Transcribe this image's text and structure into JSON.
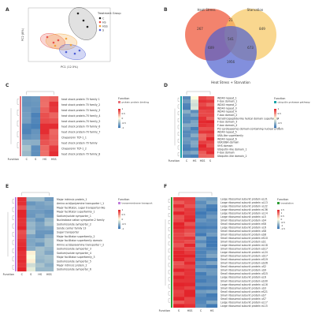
{
  "panels": {
    "A": {
      "label": "A",
      "xlabel": "PC1 (12.5%)",
      "ylabel": "PC2 (8%)",
      "legend_title": "Treatment Group",
      "groups": [
        {
          "name": "C",
          "color": "#222222"
        },
        {
          "name": "HS",
          "color": "#e8524a"
        },
        {
          "name": "HSS",
          "color": "#f2a33a"
        },
        {
          "name": "S",
          "color": "#4f5fd6"
        }
      ]
    },
    "B": {
      "label": "B",
      "sets": [
        "Heat Stress",
        "Starvation",
        "Heat Stress + Starvation"
      ],
      "counts": {
        "a_only": "267",
        "ab": "21",
        "b_only": "849",
        "abc": "541",
        "ac": "609",
        "bc": "673",
        "c_only": "1956"
      }
    },
    "C": {
      "label": "C",
      "legend_title": "Function",
      "legend_item": "protein protein binding",
      "columns": [
        "C",
        "S",
        "HS",
        "HSS"
      ],
      "row_label": "Function",
      "rows": [
        "heat shock protein 70 family 1",
        "heat shock protein 70 family_2",
        "heat shock protein 70 family_3",
        "heat shock protein-70 family_4",
        "heat shock protein-70 family_5",
        "heat shock protein 70 family_6",
        "heat shock protein-70 family_7",
        "Chaperonin TCP-1_1",
        "heat shock protein 70 family",
        "Chaperonin TCP-1_2",
        "heat shock protein 70 family_8"
      ],
      "scale": [
        "1",
        "0.5",
        "0",
        "-0.5",
        "-1"
      ]
    },
    "D": {
      "label": "D",
      "legend_title": "Function",
      "legend_item": "ubiquitin protease pathway",
      "columns": [
        "C",
        "HS",
        "HSS",
        "S"
      ],
      "row_label": "Function",
      "rows": [
        "WD40 repeat_1",
        "F-box domain_1",
        "WD40 repeat_2",
        "WD40 repeat_3",
        "WD40 repeat_4",
        "F-box domain_2",
        "Tetratricopeptide-like helical domain superfamily",
        "F-box domain_3",
        "F-box domain_4",
        "PCI (proteasome) domain-containing nuclear protein",
        "WD40 repeat_5",
        "UBA-like superfamily",
        "WD40 repeat_6",
        "UBX/UBA domain",
        "VHS domain",
        "Ubiquitin-like domain_1",
        "F-box domain",
        "Ubiquitin-like domain_2"
      ],
      "scale": [
        "1",
        "0.5",
        "0",
        "-0.5",
        "-1"
      ]
    },
    "E": {
      "label": "E",
      "legend_title": "Function",
      "legend_item": "transmembrane transport",
      "columns": [
        "C",
        "S",
        "HS",
        "HSS"
      ],
      "row_label": "Function",
      "rows": [
        "Major intrinsic protein_1",
        "Amino acid/polyamine transporter I_1",
        "Major facilitator, sugar transporter-like",
        "Major facilitator superfamily_1",
        "Sodium/solute symporter_1",
        "Nucleobase cation symporter-2 family",
        "Sodium/solute symporter_2",
        "Solute carrier family 13",
        "Sugar transporter",
        "Major facilitator superfamily_2",
        "Major facilitator superfamily domain",
        "Amino acid/polyamine transporter I_2",
        "Sodium/solute symporter_3",
        "Sodium/solute symporter_4",
        "Major facilitator superfamily_3",
        "Sodium/solute symporter_5",
        "Major intrinsic protein_2",
        "Sodium/solute symporter_6"
      ],
      "scale": [
        "1",
        "0.5",
        "0",
        "-0.5",
        "-1"
      ]
    },
    "F": {
      "label": "F",
      "legend_title": "Function",
      "legend_item": "translation",
      "columns": [
        "S",
        "HSS",
        "C",
        "HS"
      ],
      "row_label": "Function",
      "rows": [
        "Large ribosomal subunit protein eL21",
        "Large ribosomal subunit protein uL13",
        "Large ribosomal subunit protein uL22",
        "Large ribosomal subunit protein eL36",
        "Large ribosomal subunit protein uL14",
        "Large ribosomal subunit protein uL5",
        "Small ribosomal subunit protein uS4",
        "Small ribosomal subunit protein eS6",
        "Large ribosomal subunit protein uL6",
        "Small ribosomal subunit protein uS8",
        "Small ribosomal subunit protein eS8",
        "Small ribosomal subunit protein eS10",
        "Small ribosomal subunit protein eS1",
        "Large ribosomal subunit protein eL18",
        "Small ribosomal subunit protein eS17",
        "Large ribosomal subunit protein uL24",
        "Small ribosomal subunit protein uS17",
        "Small ribosomal subunit protein eS19",
        "Small ribosomal subunit protein eS26",
        "Small ribosomal subunit protein uS2",
        "Small ribosomal subunit protein uS9",
        "Small ribosomal subunit protein uS15",
        "Large ribosomal subunit protein eL6",
        "Small ribosomal subunit protein eS30",
        "Large ribosomal subunit protein uL16",
        "Small ribosomal subunit protein uS3",
        "Small ribosomal subunit protein eS21",
        "Small ribosomal subunit protein eS7",
        "Small ribosomal subunit protein uS7",
        "Large ribosomal subunit protein eL17",
        "Large ribosomal subunit protein eL15"
      ],
      "scale": [
        "1.5",
        "1",
        "0.5",
        "0",
        "-0.5",
        "-1",
        "-1.5"
      ]
    }
  },
  "colors": {
    "high": "#e3242b",
    "mid": "#ffffe0",
    "low": "#3874b3",
    "func_C": "#e8747c",
    "func_D": "#1aa3a8",
    "func_E": "#c07fdb",
    "func_F": "#2f9c35"
  },
  "chart_data": {
    "type": "heatmap"
  }
}
